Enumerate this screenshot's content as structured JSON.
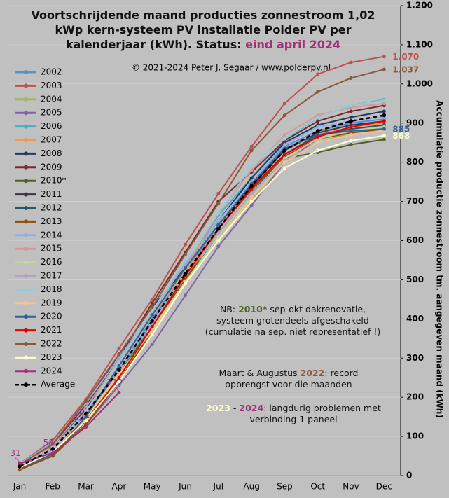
{
  "chart_data": {
    "type": "line",
    "title_lines": [
      "Voortschrijdende maand producties zonnestroom 1,02",
      "kWp kern-systeem PV installatie Polder PV per",
      "kalenderjaar (kWh). Status: "
    ],
    "status": "eind april 2024",
    "status_color": "#a0307a",
    "copyright": "© 2021-2024 Peter J. Segaar / www.polderpv.nl",
    "ylabel": "Accumulatie productie zonnestroom tm. aangegeven maand (kWh)",
    "categories": [
      "Jan",
      "Feb",
      "Mar",
      "Apr",
      "May",
      "Jun",
      "Jul",
      "Aug",
      "Sep",
      "Oct",
      "Nov",
      "Dec"
    ],
    "ylim": [
      0,
      1200
    ],
    "yticks": [
      0,
      100,
      200,
      300,
      400,
      500,
      600,
      700,
      800,
      900,
      {
        "value": 1000,
        "label": "1.000"
      },
      {
        "value": 1100,
        "label": "1.100"
      },
      {
        "value": 1200,
        "label": "1.200"
      }
    ],
    "grid": true,
    "legend": "left",
    "series": [
      {
        "name": "2002",
        "color": "#5b8fd0",
        "values": [
          25,
          70,
          160,
          270,
          400,
          520,
          640,
          745,
          840,
          880,
          900,
          910
        ]
      },
      {
        "name": "2003",
        "color": "#c0504d",
        "values": [
          30,
          90,
          195,
          325,
          450,
          590,
          720,
          840,
          950,
          1025,
          1055,
          1070
        ],
        "value_labels": [
          null,
          null,
          null,
          null,
          null,
          null,
          null,
          null,
          null,
          null,
          null,
          "1.070"
        ]
      },
      {
        "name": "2004",
        "color": "#9bbb59",
        "values": [
          20,
          60,
          140,
          250,
          370,
          490,
          600,
          705,
          800,
          850,
          875,
          888
        ]
      },
      {
        "name": "2005",
        "color": "#8064a2",
        "values": [
          18,
          55,
          130,
          230,
          335,
          460,
          585,
          690,
          800,
          860,
          880,
          890
        ]
      },
      {
        "name": "2006",
        "color": "#4bacc6",
        "values": [
          22,
          65,
          150,
          260,
          390,
          530,
          665,
          760,
          855,
          915,
          945,
          960
        ]
      },
      {
        "name": "2007",
        "color": "#f79646",
        "values": [
          25,
          70,
          165,
          290,
          410,
          520,
          630,
          730,
          820,
          870,
          890,
          900
        ]
      },
      {
        "name": "2008",
        "color": "#1f3864",
        "values": [
          28,
          75,
          170,
          290,
          420,
          540,
          650,
          760,
          850,
          895,
          915,
          930
        ]
      },
      {
        "name": "2009",
        "color": "#7b2a2a",
        "values": [
          30,
          80,
          180,
          300,
          440,
          570,
          700,
          775,
          855,
          905,
          930,
          945
        ]
      },
      {
        "name": "2010*",
        "color": "#4f6228",
        "values": [
          15,
          50,
          140,
          260,
          380,
          500,
          610,
          720,
          810,
          825,
          845,
          858
        ]
      },
      {
        "name": "2011",
        "color": "#403152",
        "values": [
          25,
          75,
          180,
          310,
          430,
          530,
          640,
          740,
          830,
          875,
          895,
          905
        ]
      },
      {
        "name": "2012",
        "color": "#215968",
        "values": [
          20,
          60,
          150,
          270,
          390,
          510,
          620,
          720,
          820,
          870,
          885,
          895
        ]
      },
      {
        "name": "2013",
        "color": "#974806",
        "values": [
          15,
          50,
          130,
          240,
          370,
          500,
          630,
          730,
          815,
          860,
          875,
          885
        ]
      },
      {
        "name": "2014",
        "color": "#8db3e2",
        "values": [
          30,
          85,
          185,
          300,
          420,
          540,
          650,
          750,
          845,
          890,
          905,
          915
        ]
      },
      {
        "name": "2015",
        "color": "#d99694",
        "values": [
          25,
          75,
          175,
          290,
          410,
          530,
          670,
          780,
          870,
          920,
          940,
          950
        ]
      },
      {
        "name": "2016",
        "color": "#c3d69b",
        "values": [
          20,
          60,
          145,
          255,
          375,
          495,
          610,
          720,
          810,
          860,
          880,
          890
        ]
      },
      {
        "name": "2017",
        "color": "#b3a2c7",
        "values": [
          22,
          65,
          155,
          270,
          390,
          510,
          620,
          720,
          805,
          850,
          870,
          880
        ]
      },
      {
        "name": "2018",
        "color": "#93cddd",
        "values": [
          25,
          70,
          165,
          290,
          420,
          550,
          670,
          790,
          860,
          915,
          945,
          958
        ]
      },
      {
        "name": "2019",
        "color": "#fac090",
        "values": [
          20,
          60,
          150,
          260,
          370,
          490,
          600,
          710,
          800,
          850,
          870,
          880
        ]
      },
      {
        "name": "2020",
        "color": "#376092",
        "values": [
          18,
          55,
          150,
          280,
          410,
          530,
          640,
          745,
          835,
          870,
          880,
          885
        ],
        "value_labels": [
          null,
          null,
          null,
          null,
          null,
          null,
          null,
          null,
          null,
          null,
          null,
          "885"
        ]
      },
      {
        "name": "2021",
        "color": "#e00000",
        "values": [
          22,
          60,
          140,
          250,
          380,
          510,
          630,
          735,
          820,
          865,
          890,
          905
        ]
      },
      {
        "name": "2022",
        "color": "#8b5a3c",
        "values": [
          28,
          80,
          190,
          310,
          430,
          565,
          695,
          830,
          920,
          980,
          1015,
          1037
        ],
        "value_labels": [
          null,
          null,
          null,
          null,
          null,
          null,
          null,
          null,
          null,
          null,
          null,
          "1.037"
        ]
      },
      {
        "name": "2023",
        "color": "#ffffcc",
        "values": [
          20,
          60,
          140,
          240,
          360,
          490,
          600,
          700,
          785,
          830,
          855,
          868
        ],
        "value_labels": [
          null,
          null,
          null,
          null,
          null,
          null,
          null,
          null,
          null,
          null,
          null,
          "868"
        ]
      },
      {
        "name": "2024",
        "color": "#a0307a",
        "values": [
          31,
          58,
          124,
          212,
          null,
          null,
          null,
          null,
          null,
          null,
          null,
          null
        ],
        "value_labels": [
          "31",
          "58",
          "124",
          "212",
          null,
          null,
          null,
          null,
          null,
          null,
          null,
          null
        ]
      },
      {
        "name": "Average",
        "color": "#000000",
        "dashed": true,
        "values": [
          23,
          68,
          158,
          270,
          395,
          515,
          630,
          740,
          830,
          880,
          905,
          920
        ]
      }
    ],
    "annotations": [
      [
        [
          {
            "text": "NB: "
          },
          {
            "text": "2010*",
            "color": "#4f6228"
          },
          {
            "text": " sep-okt dakrenovatie,"
          }
        ],
        [
          {
            "text": "systeem grotendeels afgeschakeld"
          }
        ],
        [
          {
            "text": "(cumulatie na sep. niet representatief !)"
          }
        ]
      ],
      [
        [
          {
            "text": "Maart & Augustus "
          },
          {
            "text": "2022",
            "color": "#8b5a3c"
          },
          {
            "text": ": record"
          }
        ],
        [
          {
            "text": "opbrengst voor die maanden"
          }
        ]
      ],
      [
        [
          {
            "text": "2023",
            "color": "#ffffcc"
          },
          {
            "text": " - "
          },
          {
            "text": "2024",
            "color": "#a0307a"
          },
          {
            "text": ": langdurig problemen met"
          }
        ],
        [
          {
            "text": "verbinding 1 paneel"
          }
        ]
      ]
    ]
  }
}
